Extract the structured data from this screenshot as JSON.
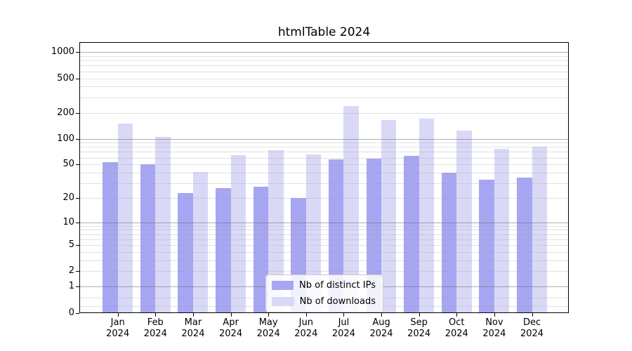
{
  "title": "htmlTable 2024",
  "chart_data": {
    "type": "bar",
    "title": "htmlTable 2024",
    "months": [
      "Jan",
      "Feb",
      "Mar",
      "Apr",
      "May",
      "Jun",
      "Jul",
      "Aug",
      "Sep",
      "Oct",
      "Nov",
      "Dec"
    ],
    "year_label": "2024",
    "categories": [
      "Jan 2024",
      "Feb 2024",
      "Mar 2024",
      "Apr 2024",
      "May 2024",
      "Jun 2024",
      "Jul 2024",
      "Aug 2024",
      "Sep 2024",
      "Oct 2024",
      "Nov 2024",
      "Dec 2024"
    ],
    "series": [
      {
        "name": "Nb of distinct IPs",
        "color": "#a6a6f2",
        "values": [
          53,
          50,
          23,
          26,
          27,
          20,
          57,
          59,
          63,
          40,
          33,
          35
        ]
      },
      {
        "name": "Nb of downloads",
        "color": "#d9d9f7",
        "values": [
          150,
          105,
          41,
          64,
          74,
          66,
          240,
          164,
          170,
          125,
          76,
          81
        ]
      }
    ],
    "yscale": "log(value+1)",
    "y_ticks": [
      1000,
      500,
      200,
      100,
      50,
      20,
      10,
      5,
      2,
      1,
      0
    ],
    "y_minor_gridlines": [
      0.2,
      0.5,
      2,
      3,
      4,
      5,
      6,
      7,
      8,
      9,
      20,
      30,
      40,
      50,
      60,
      70,
      80,
      90,
      200,
      300,
      400,
      500,
      600,
      700,
      800,
      900
    ],
    "y_major_gridlines": [
      1,
      10,
      100,
      1000
    ],
    "ylim": [
      0,
      1300
    ],
    "xlabel": "",
    "ylabel": "",
    "grid": true,
    "legend_position": "lower center",
    "colors": {
      "distinct_ips_bar": "#a6a6f2",
      "downloads_bar": "#d9d9f7",
      "major_gridline": "#b0b0b0",
      "minor_gridline": "#e8e8e8",
      "axis": "#000000",
      "legend_border": "#cccccc"
    }
  }
}
